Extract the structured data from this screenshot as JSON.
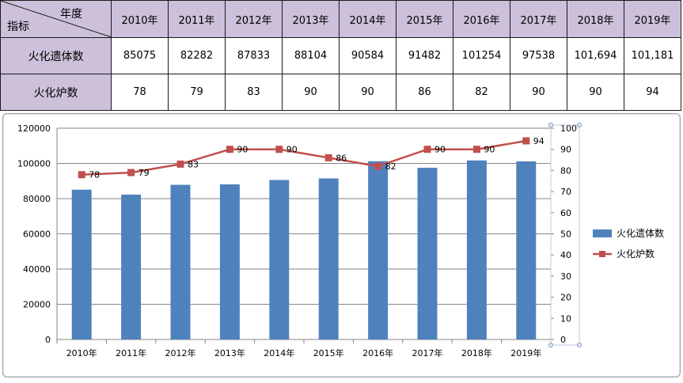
{
  "table": {
    "corner_top": "年度",
    "corner_bottom": "指标",
    "years": [
      "2010年",
      "2011年",
      "2012年",
      "2013年",
      "2014年",
      "2015年",
      "2016年",
      "2017年",
      "2018年",
      "2019年"
    ],
    "rows": [
      {
        "label": "火化遗体数",
        "values": [
          "85075",
          "82282",
          "87833",
          "88104",
          "90584",
          "91482",
          "101254",
          "97538",
          "101,694",
          "101,181"
        ]
      },
      {
        "label": "火化炉数",
        "values": [
          "78",
          "79",
          "83",
          "90",
          "90",
          "86",
          "82",
          "90",
          "90",
          "94"
        ]
      }
    ]
  },
  "chart_data": {
    "type": "bar+line",
    "categories": [
      "2010年",
      "2011年",
      "2012年",
      "2013年",
      "2014年",
      "2015年",
      "2016年",
      "2017年",
      "2018年",
      "2019年"
    ],
    "series": [
      {
        "name": "火化遗体数",
        "type": "bar",
        "axis": "left",
        "color": "#4f81bd",
        "values": [
          85075,
          82282,
          87833,
          88104,
          90584,
          91482,
          101254,
          97538,
          101694,
          101181
        ]
      },
      {
        "name": "火化炉数",
        "type": "line",
        "axis": "right",
        "color": "#c0504d",
        "values": [
          78,
          79,
          83,
          90,
          90,
          86,
          82,
          90,
          90,
          94
        ],
        "labels": [
          "78",
          "79",
          "83",
          "90",
          "90",
          "86",
          "82",
          "90",
          "90",
          "94"
        ]
      }
    ],
    "y_left": {
      "min": 0,
      "max": 120000,
      "step": 20000,
      "ticks": [
        "0",
        "20000",
        "40000",
        "60000",
        "80000",
        "100000",
        "120000"
      ]
    },
    "y_right": {
      "min": 0,
      "max": 100,
      "step": 10,
      "ticks": [
        "0",
        "10",
        "20",
        "30",
        "40",
        "50",
        "60",
        "70",
        "80",
        "90",
        "100"
      ]
    },
    "grid": true,
    "legend": "right"
  }
}
